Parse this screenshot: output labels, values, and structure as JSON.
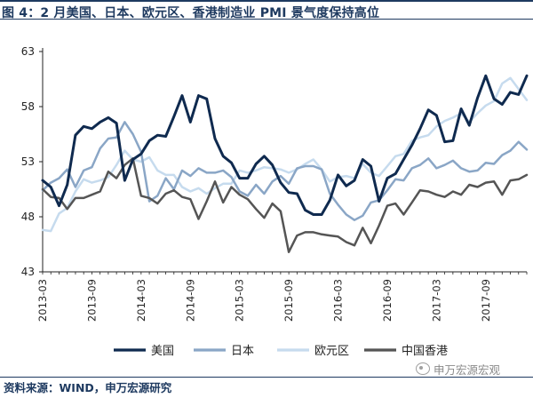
{
  "title": "图 4：2 月美国、日本、欧元区、香港制造业 PMI 景气度保持高位",
  "source": "资料来源：WIND，申万宏源研究",
  "watermark": "申万宏源宏观",
  "colors": {
    "title": "#1e3a60",
    "axis": "#222222"
  },
  "chart_data": {
    "type": "line",
    "title": "",
    "xlabel": "",
    "ylabel": "",
    "ylim": [
      43,
      63
    ],
    "yticks": [
      43,
      48,
      53,
      58,
      63
    ],
    "grid": false,
    "legend_position": "bottom",
    "x_start": "2013-03",
    "x": [
      "2013-03",
      "2013-04",
      "2013-05",
      "2013-06",
      "2013-07",
      "2013-08",
      "2013-09",
      "2013-10",
      "2013-11",
      "2013-12",
      "2014-01",
      "2014-02",
      "2014-03",
      "2014-04",
      "2014-05",
      "2014-06",
      "2014-07",
      "2014-08",
      "2014-09",
      "2014-10",
      "2014-11",
      "2014-12",
      "2015-01",
      "2015-02",
      "2015-03",
      "2015-04",
      "2015-05",
      "2015-06",
      "2015-07",
      "2015-08",
      "2015-09",
      "2015-10",
      "2015-11",
      "2015-12",
      "2016-01",
      "2016-02",
      "2016-03",
      "2016-04",
      "2016-05",
      "2016-06",
      "2016-07",
      "2016-08",
      "2016-09",
      "2016-10",
      "2016-11",
      "2016-12",
      "2017-01",
      "2017-02",
      "2017-03",
      "2017-04",
      "2017-05",
      "2017-06",
      "2017-07",
      "2017-08",
      "2017-09",
      "2017-10",
      "2017-11",
      "2017-12",
      "2018-01",
      "2018-02"
    ],
    "xtick_labels": [
      "2013-03",
      "2013-09",
      "2014-03",
      "2014-09",
      "2015-03",
      "2015-09",
      "2016-03",
      "2016-09",
      "2017-03",
      "2017-09"
    ],
    "series": [
      {
        "name": "美国",
        "color": "#0f2a4f",
        "width": 3,
        "values": [
          51.3,
          50.7,
          49.0,
          50.9,
          55.4,
          56.2,
          56.0,
          56.6,
          57.0,
          56.5,
          51.3,
          53.2,
          53.7,
          54.9,
          55.4,
          55.3,
          57.1,
          59.0,
          56.6,
          59.0,
          58.7,
          55.1,
          53.5,
          52.9,
          51.5,
          51.5,
          52.8,
          53.5,
          52.7,
          51.1,
          50.2,
          50.1,
          48.6,
          48.2,
          48.2,
          49.5,
          51.8,
          50.8,
          51.3,
          53.2,
          52.6,
          49.4,
          51.5,
          51.9,
          53.2,
          54.5,
          56.0,
          57.7,
          57.2,
          54.8,
          54.9,
          57.8,
          56.3,
          58.8,
          60.8,
          58.7,
          58.2,
          59.3,
          59.1,
          60.8
        ]
      },
      {
        "name": "日本",
        "color": "#8aa6c6",
        "width": 2.5,
        "values": [
          50.4,
          51.1,
          51.5,
          52.3,
          50.7,
          52.2,
          52.5,
          54.2,
          55.1,
          55.2,
          56.6,
          55.5,
          53.9,
          49.4,
          49.9,
          51.5,
          50.5,
          52.2,
          51.7,
          52.4,
          52.0,
          52.0,
          52.2,
          51.6,
          50.3,
          49.9,
          50.9,
          50.1,
          51.2,
          51.7,
          51.0,
          52.4,
          52.6,
          52.6,
          52.3,
          50.1,
          49.1,
          48.2,
          47.7,
          48.1,
          49.3,
          49.5,
          50.4,
          51.4,
          51.3,
          52.4,
          52.7,
          53.3,
          52.4,
          52.7,
          53.1,
          52.4,
          52.1,
          52.2,
          52.9,
          52.8,
          53.6,
          54.0,
          54.8,
          54.1
        ]
      },
      {
        "name": "欧元区",
        "color": "#c6dbee",
        "width": 2.5,
        "values": [
          46.8,
          46.7,
          48.3,
          48.8,
          50.3,
          51.4,
          51.1,
          51.3,
          51.6,
          52.7,
          54.0,
          53.2,
          53.0,
          53.4,
          52.2,
          51.8,
          51.8,
          50.7,
          50.3,
          50.6,
          50.1,
          50.6,
          51.0,
          51.0,
          52.2,
          52.0,
          52.2,
          52.5,
          52.4,
          52.3,
          52.0,
          52.3,
          52.8,
          53.2,
          52.3,
          51.2,
          51.6,
          51.7,
          51.5,
          52.8,
          52.0,
          51.7,
          52.6,
          53.5,
          53.7,
          54.9,
          55.2,
          55.4,
          56.2,
          56.7,
          57.0,
          57.4,
          56.6,
          57.4,
          58.1,
          58.5,
          60.1,
          60.6,
          59.6,
          58.6
        ]
      },
      {
        "name": "中国香港",
        "color": "#555555",
        "width": 2.5,
        "values": [
          50.5,
          49.8,
          49.7,
          48.7,
          49.7,
          49.7,
          50.0,
          50.3,
          52.1,
          51.5,
          52.7,
          53.3,
          49.9,
          49.7,
          49.2,
          50.1,
          50.4,
          49.8,
          49.6,
          47.8,
          49.4,
          51.2,
          49.3,
          50.7,
          50.0,
          49.6,
          48.7,
          47.9,
          49.2,
          48.5,
          44.8,
          46.3,
          46.6,
          46.6,
          46.4,
          46.3,
          46.2,
          45.7,
          45.4,
          47.0,
          45.6,
          47.2,
          49.0,
          49.2,
          48.2,
          49.3,
          50.4,
          50.3,
          50.0,
          49.8,
          50.3,
          50.0,
          50.9,
          50.7,
          51.1,
          51.2,
          50.0,
          51.3,
          51.4,
          51.8
        ]
      }
    ]
  }
}
